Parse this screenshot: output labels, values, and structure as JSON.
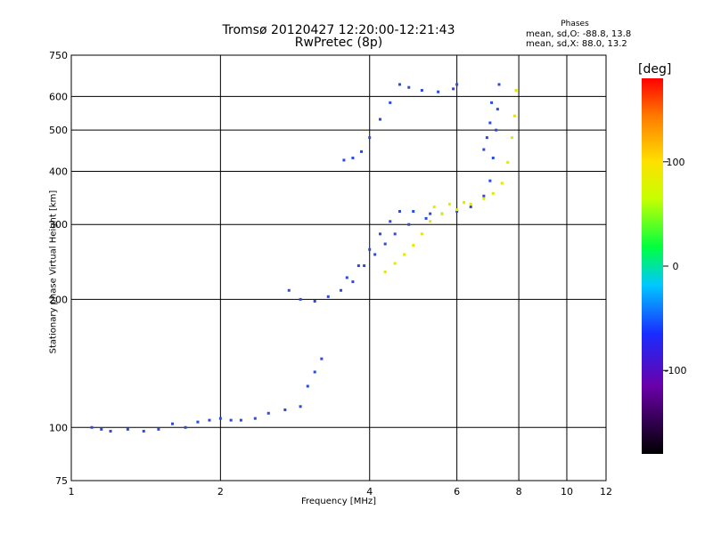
{
  "title_line1": "Tromsø 20120427 12:20:00-12:21:43",
  "title_line2": "RwPretec (8p)",
  "phases_legend": {
    "title": "Phases",
    "line1": "mean, sd,O: -88.8, 13.8",
    "line2": "mean, sd,X: 88.0, 13.2"
  },
  "chart_data": {
    "type": "scatter",
    "title": "Tromsø 20120427 12:20:00-12:21:43",
    "subtitle": "RwPretec (8p)",
    "xlabel": "Frequency [MHz]",
    "ylabel": "Stationary phase Virtual Height [km]",
    "x_scale": "log",
    "y_scale": "log",
    "xlim": [
      1,
      12
    ],
    "ylim": [
      75,
      750
    ],
    "x_ticks": [
      1,
      2,
      4,
      6,
      8,
      10,
      12
    ],
    "y_ticks": [
      75,
      100,
      200,
      300,
      400,
      500,
      600,
      750
    ],
    "grid": true,
    "colorbar": {
      "label": "[deg]",
      "range": [
        -180,
        180
      ],
      "ticks": [
        -100,
        0,
        100
      ]
    },
    "series": [
      {
        "phase": -90,
        "color": "#2a4ae0",
        "points": [
          [
            1.1,
            100
          ],
          [
            1.15,
            99
          ],
          [
            1.2,
            98
          ],
          [
            1.3,
            99
          ],
          [
            1.4,
            98
          ],
          [
            1.5,
            99
          ],
          [
            1.6,
            102
          ],
          [
            1.7,
            100
          ],
          [
            1.8,
            103
          ],
          [
            1.9,
            104
          ],
          [
            2.0,
            105
          ],
          [
            2.1,
            104
          ],
          [
            2.2,
            104
          ],
          [
            2.35,
            105
          ],
          [
            2.5,
            108
          ],
          [
            2.7,
            110
          ],
          [
            2.9,
            112
          ],
          [
            3.0,
            125
          ],
          [
            3.1,
            135
          ],
          [
            3.2,
            145
          ],
          [
            2.75,
            210
          ],
          [
            2.9,
            200
          ],
          [
            3.1,
            198
          ],
          [
            3.3,
            203
          ],
          [
            3.5,
            210
          ],
          [
            3.7,
            220
          ],
          [
            3.9,
            240
          ],
          [
            4.1,
            255
          ],
          [
            4.3,
            270
          ],
          [
            4.5,
            285
          ],
          [
            4.8,
            300
          ],
          [
            5.2,
            310
          ],
          [
            5.6,
            318
          ],
          [
            6.0,
            322
          ],
          [
            6.4,
            330
          ],
          [
            6.8,
            350
          ],
          [
            7.0,
            380
          ],
          [
            7.1,
            430
          ],
          [
            7.2,
            500
          ],
          [
            7.25,
            560
          ],
          [
            7.3,
            640
          ],
          [
            3.6,
            225
          ],
          [
            3.8,
            240
          ],
          [
            4.0,
            262
          ],
          [
            4.2,
            285
          ],
          [
            4.4,
            305
          ],
          [
            4.6,
            322
          ],
          [
            4.9,
            322
          ],
          [
            5.3,
            318
          ],
          [
            3.55,
            425
          ],
          [
            3.7,
            430
          ],
          [
            3.85,
            445
          ],
          [
            4.0,
            480
          ],
          [
            4.2,
            530
          ],
          [
            4.4,
            580
          ],
          [
            4.6,
            640
          ],
          [
            4.8,
            630
          ],
          [
            5.1,
            620
          ],
          [
            5.5,
            615
          ],
          [
            5.9,
            625
          ],
          [
            6.0,
            640
          ],
          [
            6.8,
            450
          ],
          [
            6.9,
            480
          ],
          [
            7.0,
            520
          ],
          [
            7.05,
            580
          ]
        ]
      },
      {
        "phase": 90,
        "color": "#e2e800",
        "points": [
          [
            4.3,
            232
          ],
          [
            4.5,
            243
          ],
          [
            4.7,
            255
          ],
          [
            4.9,
            268
          ],
          [
            5.1,
            285
          ],
          [
            5.3,
            305
          ],
          [
            5.6,
            318
          ],
          [
            6.0,
            325
          ],
          [
            6.4,
            335
          ],
          [
            6.8,
            345
          ],
          [
            7.1,
            355
          ],
          [
            7.4,
            375
          ],
          [
            7.6,
            420
          ],
          [
            7.75,
            480
          ],
          [
            7.85,
            540
          ],
          [
            7.9,
            620
          ],
          [
            5.4,
            330
          ],
          [
            5.8,
            335
          ],
          [
            6.2,
            338
          ]
        ]
      }
    ]
  }
}
